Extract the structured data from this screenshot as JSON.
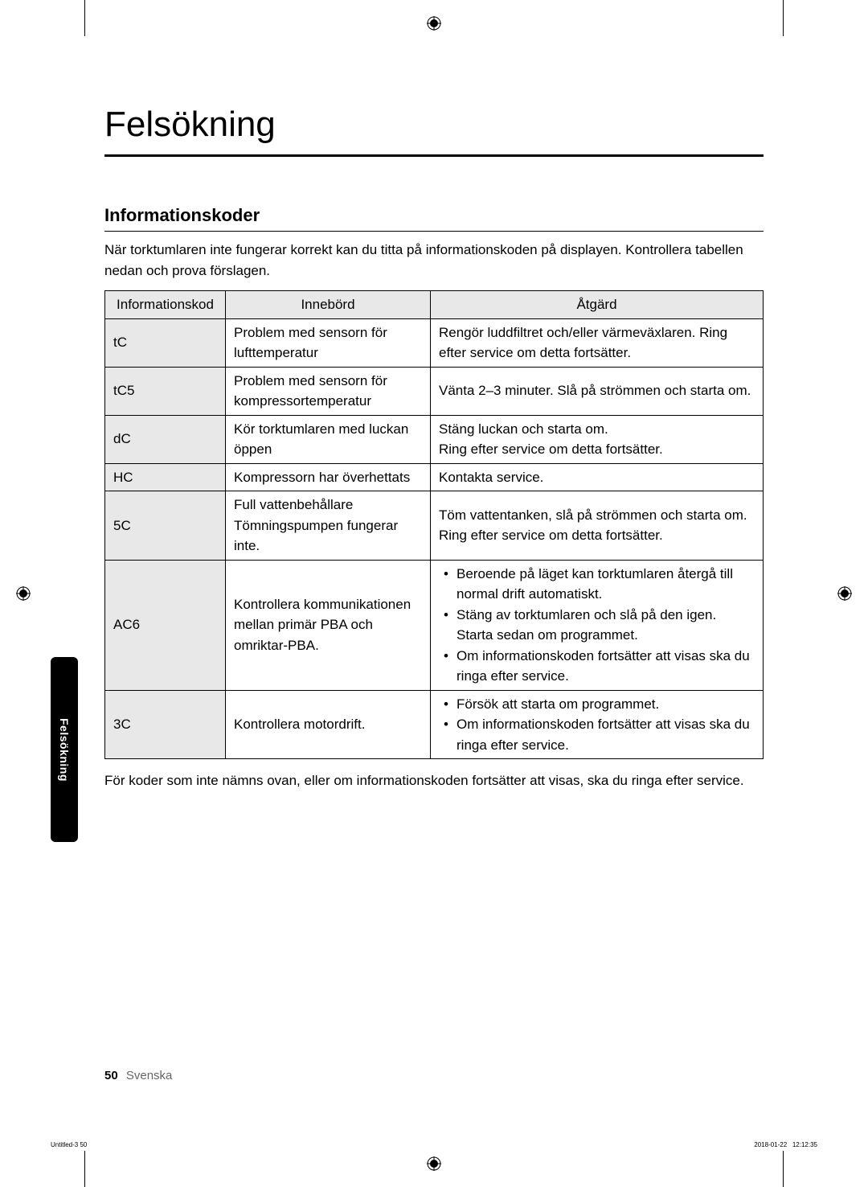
{
  "title": "Felsökning",
  "section_title": "Informationskoder",
  "intro": "När torktumlaren inte fungerar korrekt kan du titta på informationskoden på displayen. Kontrollera tabellen nedan och prova förslagen.",
  "table": {
    "headers": {
      "code": "Informationskod",
      "meaning": "Innebörd",
      "action": "Åtgärd"
    },
    "rows": [
      {
        "code": "tC",
        "meaning": "Problem med sensorn för lufttemperatur",
        "action": "Rengör luddfiltret och/eller värmeväxlaren. Ring efter service om detta fortsätter."
      },
      {
        "code": "tC5",
        "meaning": "Problem med sensorn för kompressortemperatur",
        "action": "Vänta 2–3 minuter. Slå på strömmen och starta om."
      },
      {
        "code": "dC",
        "meaning": "Kör torktumlaren med luckan öppen",
        "action": "Stäng luckan och starta om.\nRing efter service om detta fortsätter."
      },
      {
        "code": "HC",
        "meaning": "Kompressorn har överhettats",
        "action": "Kontakta service."
      },
      {
        "code": "5C",
        "meaning": "Full vattenbehållare\nTömningspumpen fungerar inte.",
        "action": "Töm vattentanken, slå på strömmen och starta om. Ring efter service om detta fortsätter."
      },
      {
        "code": "AC6",
        "meaning": "Kontrollera kommunikationen mellan primär PBA och omriktar-PBA.",
        "action_bullets": [
          "Beroende på läget kan torktumlaren återgå till normal drift automatiskt.",
          "Stäng av torktumlaren och slå på den igen. Starta sedan om programmet.",
          "Om informationskoden fortsätter att visas ska du ringa efter service."
        ]
      },
      {
        "code": "3C",
        "meaning": "Kontrollera motordrift.",
        "action_bullets": [
          "Försök att starta om programmet.",
          "Om informationskoden fortsätter att visas ska du ringa efter service."
        ]
      }
    ]
  },
  "footer_note": "För koder som inte nämns ovan, eller om informationskoden fortsätter att visas, ska du ringa efter service.",
  "side_tab": "Felsökning",
  "page_number": "50",
  "page_language": "Svenska",
  "print_left": "Untitled-3   50",
  "print_right": "2018-01-22     12:12:35",
  "colors": {
    "header_bg": "#e8e8e8",
    "border": "#000000",
    "text": "#000000",
    "tab_bg": "#000000",
    "tab_text": "#ffffff"
  }
}
